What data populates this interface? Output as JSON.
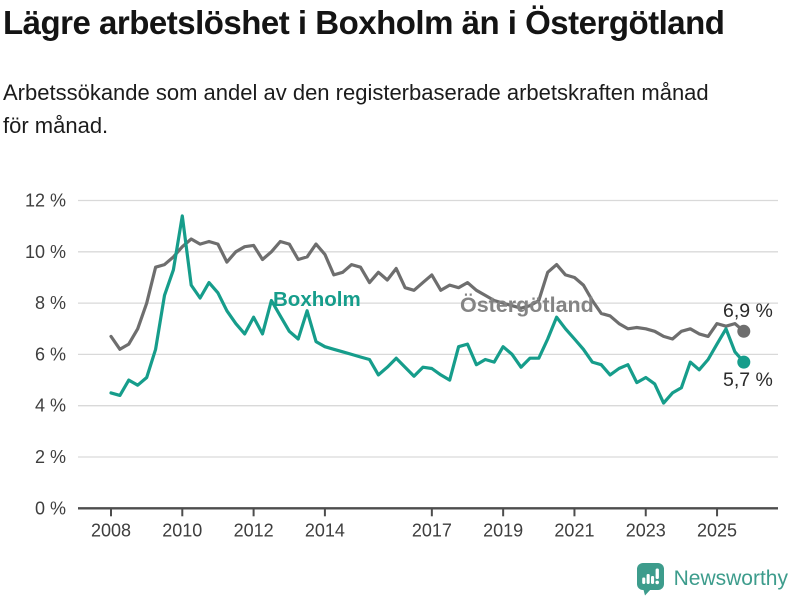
{
  "header": {
    "title": "Lägre arbetslöshet i Boxholm än i Östergötland",
    "subtitle": {
      "line1": "Arbetssökande som andel av den registerbaserade arbetskraften månad",
      "line2": "för månad."
    }
  },
  "chart_data": {
    "type": "line",
    "title": "Lägre arbetslöshet i Boxholm än i Östergötland",
    "subtitle": "Arbetssökande som andel av den registerbaserade arbetskraften månad för månad.",
    "unit": "%",
    "x_start": 2008.0,
    "x_step_years": 0.25,
    "x_end": 2025.75,
    "xlim": [
      2007.9,
      2026.6
    ],
    "ylim": [
      0,
      12
    ],
    "grid": true,
    "yticks": [
      0,
      2,
      4,
      6,
      8,
      10,
      12
    ],
    "ytick_labels": [
      "0 %",
      "2 %",
      "4 %",
      "6 %",
      "8 %",
      "10 %",
      "12 %"
    ],
    "xticks": [
      2008,
      2010,
      2012,
      2014,
      2017,
      2019,
      2021,
      2023,
      2025
    ],
    "xtick_labels": [
      "2008",
      "2010",
      "2012",
      "2014",
      "2017",
      "2019",
      "2021",
      "2023",
      "2025"
    ],
    "series": [
      {
        "name": "Boxholm",
        "color": "#169d8b",
        "label_color": "#169d8b",
        "end_label": "5,7 %",
        "end_value": 5.7,
        "label_pos": {
          "x": 273,
          "y": 121
        },
        "end_label_pos": {
          "x": 723,
          "y": 201
        },
        "values": [
          4.5,
          4.4,
          5.0,
          4.8,
          5.1,
          6.2,
          8.3,
          9.3,
          11.4,
          8.7,
          8.2,
          8.8,
          8.4,
          7.7,
          7.2,
          6.8,
          7.45,
          6.8,
          8.1,
          7.5,
          6.9,
          6.6,
          7.7,
          6.5,
          6.3,
          6.2,
          6.1,
          6.0,
          5.9,
          5.8,
          5.2,
          5.5,
          5.85,
          5.5,
          5.15,
          5.5,
          5.45,
          5.2,
          5.0,
          6.3,
          6.4,
          5.6,
          5.8,
          5.7,
          6.3,
          6.0,
          5.5,
          5.85,
          5.85,
          6.6,
          7.45,
          7.0,
          6.6,
          6.2,
          5.7,
          5.6,
          5.2,
          5.45,
          5.6,
          4.9,
          5.1,
          4.85,
          4.1,
          4.5,
          4.7,
          5.7,
          5.4,
          5.8,
          6.4,
          7.0,
          6.1,
          5.7
        ]
      },
      {
        "name": "Östergötland",
        "color": "#6e6e6e",
        "label_color": "#848484",
        "end_label": "6,9 %",
        "end_value": 6.9,
        "label_pos": {
          "x": 460,
          "y": 127
        },
        "end_label_pos": {
          "x": 723,
          "y": 132
        },
        "values": [
          6.7,
          6.2,
          6.4,
          7.0,
          8.0,
          9.4,
          9.5,
          9.8,
          10.2,
          10.5,
          10.3,
          10.4,
          10.3,
          9.6,
          10.0,
          10.2,
          10.25,
          9.7,
          10.0,
          10.4,
          10.3,
          9.7,
          9.8,
          10.3,
          9.9,
          9.1,
          9.2,
          9.5,
          9.4,
          8.8,
          9.2,
          8.9,
          9.35,
          8.6,
          8.5,
          8.8,
          9.1,
          8.5,
          8.7,
          8.6,
          8.8,
          8.5,
          8.3,
          8.1,
          8.0,
          7.9,
          7.8,
          7.9,
          8.1,
          9.2,
          9.5,
          9.1,
          9.0,
          8.7,
          8.1,
          7.6,
          7.5,
          7.2,
          7.0,
          7.05,
          7.0,
          6.9,
          6.7,
          6.6,
          6.9,
          7.0,
          6.8,
          6.7,
          7.2,
          7.1,
          7.2,
          6.9
        ]
      }
    ],
    "legend_position": "inline-labels",
    "colors": {
      "grid": "#d9d9d9",
      "axis": "#4d4d4d",
      "tick_text": "#3e3e3e",
      "end_label_text": "#2b2b2b",
      "brand": "#3d9c8c"
    }
  },
  "footer": {
    "brand": "Newsworthy"
  }
}
